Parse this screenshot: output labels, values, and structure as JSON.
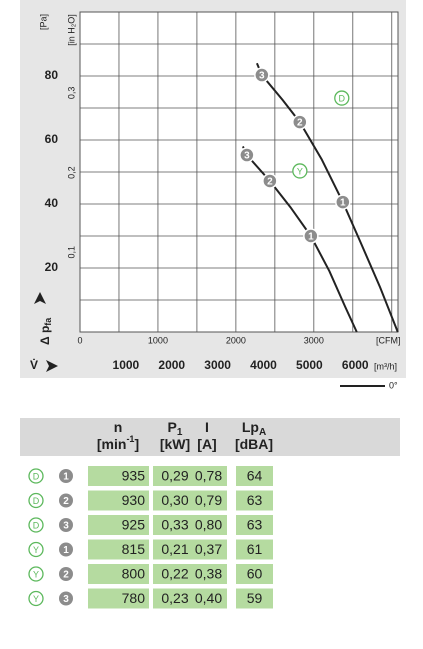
{
  "chart_data": {
    "type": "line",
    "y_label": "[Pa]",
    "y2_label": "[in H₂O]",
    "y_title": "Δ p",
    "y_title_sub": "fa",
    "x_title": "V̇",
    "x_label": "[CFM]",
    "x2_label": "[m³/h]",
    "xlim": [
      0,
      4080
    ],
    "xticks": [
      0,
      1000,
      2000,
      3000
    ],
    "x2lim": [
      0,
      6932
    ],
    "x2ticks": [
      1000,
      2000,
      3000,
      4000,
      5000,
      6000
    ],
    "ylim": [
      0,
      100
    ],
    "yticks": [
      20,
      40,
      60,
      80
    ],
    "y2lim": [
      0,
      0.4015
    ],
    "y2ticks": [
      {
        "value": 0.1,
        "label": "0,1"
      },
      {
        "value": 0.2,
        "label": "0,2"
      },
      {
        "value": 0.3,
        "label": "0,3"
      }
    ],
    "grid_x": [
      0,
      500,
      1000,
      1500,
      2000,
      2500,
      3000,
      3500,
      4000
    ],
    "grid_y": [
      0,
      10,
      20,
      30,
      40,
      50,
      60,
      70,
      80,
      90,
      100
    ],
    "legend_label": "0°",
    "series": [
      {
        "name": "D",
        "color": "#222222",
        "x": [
          2270,
          2333,
          2600,
          2820,
          3100,
          3372,
          3600,
          3850,
          4077
        ],
        "values": [
          84,
          80.3,
          72.5,
          65.6,
          54,
          40.6,
          28,
          14,
          0
        ],
        "points": [
          {
            "label": "3",
            "x": 2333,
            "y": 80.3
          },
          {
            "label": "2",
            "x": 2820,
            "y": 65.6
          },
          {
            "label": "1",
            "x": 3372,
            "y": 40.6
          }
        ]
      },
      {
        "name": "Y",
        "color": "#222222",
        "x": [
          2090,
          2141,
          2436,
          2700,
          2962,
          3200,
          3400,
          3551
        ],
        "values": [
          58,
          55.3,
          47.2,
          39,
          30,
          19,
          8,
          0
        ],
        "points": [
          {
            "label": "3",
            "x": 2141,
            "y": 55.3
          },
          {
            "label": "2",
            "x": 2436,
            "y": 47.2
          },
          {
            "label": "1",
            "x": 2962,
            "y": 30
          }
        ]
      }
    ]
  },
  "table": {
    "columns": [
      {
        "symbol": "n",
        "sub": "",
        "unit": "[min",
        "unit_sup": "-1",
        "unit_end": "]"
      },
      {
        "symbol": "P",
        "sub": "1",
        "unit": "[kW]",
        "unit_sup": "",
        "unit_end": ""
      },
      {
        "symbol": "I",
        "sub": "",
        "unit": "[A]",
        "unit_sup": "",
        "unit_end": ""
      },
      {
        "symbol": "Lp",
        "sub": "A",
        "unit": "[dBA]",
        "unit_sup": "",
        "unit_end": ""
      }
    ],
    "rows": [
      {
        "variant": "D",
        "curve": "1",
        "cells": [
          "935",
          "0,29",
          "0,78",
          "64"
        ]
      },
      {
        "variant": "D",
        "curve": "2",
        "cells": [
          "930",
          "0,30",
          "0,79",
          "63"
        ]
      },
      {
        "variant": "D",
        "curve": "3",
        "cells": [
          "925",
          "0,33",
          "0,80",
          "63"
        ]
      },
      {
        "variant": "Y",
        "curve": "1",
        "cells": [
          "815",
          "0,21",
          "0,37",
          "61"
        ]
      },
      {
        "variant": "Y",
        "curve": "2",
        "cells": [
          "800",
          "0,22",
          "0,38",
          "60"
        ]
      },
      {
        "variant": "Y",
        "curve": "3",
        "cells": [
          "780",
          "0,23",
          "0,40",
          "59"
        ]
      }
    ]
  }
}
